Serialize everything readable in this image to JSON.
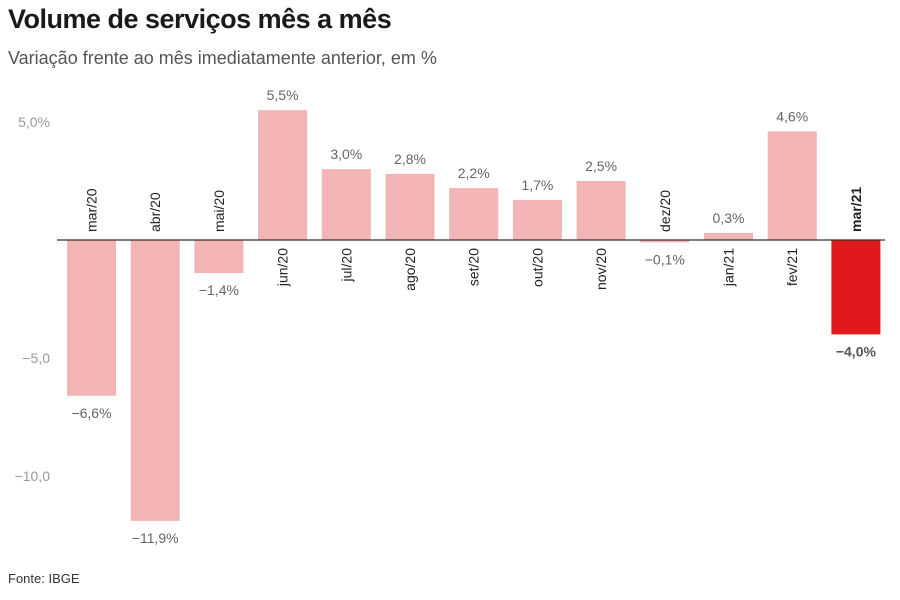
{
  "title": "Volume de serviços mês a mês",
  "subtitle": "Variação frente ao mês imediatamente anterior, em %",
  "source": "Fonte: IBGE",
  "colors": {
    "bar": "#f2b4b4",
    "highlight": "#e0191f",
    "axis": "#333333"
  },
  "chart_data": {
    "type": "bar",
    "title": "Volume de serviços mês a mês",
    "subtitle": "Variação frente ao mês imediatamente anterior, em %",
    "categories": [
      "mar/20",
      "abr/20",
      "mai/20",
      "jun/20",
      "jul/20",
      "ago/20",
      "set/20",
      "out/20",
      "nov/20",
      "dez/20",
      "jan/21",
      "fev/21",
      "mar/21"
    ],
    "values": [
      -6.6,
      -11.9,
      -1.4,
      5.5,
      3.0,
      2.8,
      2.2,
      1.7,
      2.5,
      -0.1,
      0.3,
      4.6,
      -4.0
    ],
    "value_labels": [
      "−6,6%",
      "−11,9%",
      "−1,4%",
      "5,5%",
      "3,0%",
      "2,8%",
      "2,2%",
      "1,7%",
      "2,5%",
      "−0,1%",
      "0,3%",
      "4,6%",
      "−4,0%"
    ],
    "highlight_index": 12,
    "yticks": [
      {
        "value": 5,
        "label": "5,0%"
      },
      {
        "value": -5,
        "label": "−5,0"
      },
      {
        "value": -10,
        "label": "−10,0"
      }
    ],
    "ylim": [
      -12.5,
      6.5
    ],
    "grid": false
  }
}
